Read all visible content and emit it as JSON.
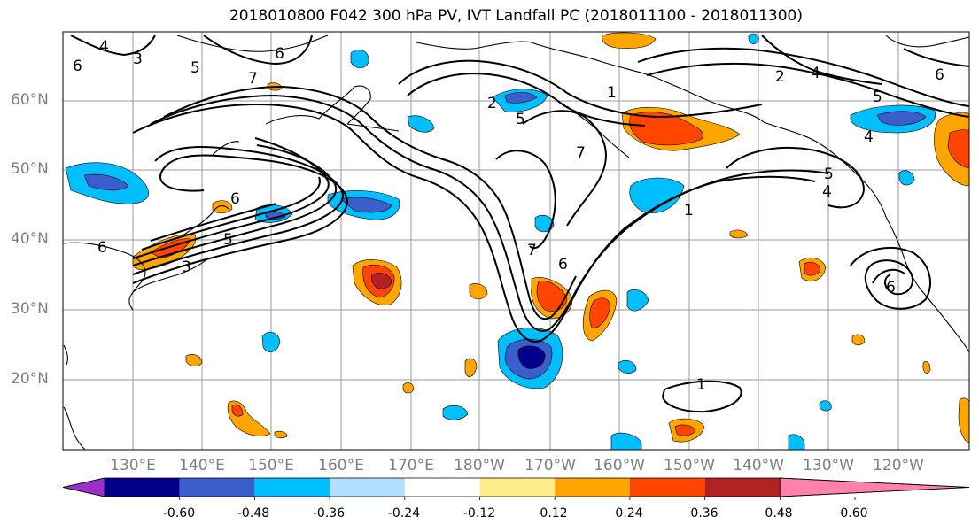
{
  "title": "2018010800 F042 300 hPa PV, IVT Landfall PC (2018011100 - 2018011300)",
  "lat_labels": [
    "60°N",
    "50°N",
    "40°N",
    "30°N",
    "20°N"
  ],
  "lon_labels": [
    "130°E",
    "140°E",
    "150°E",
    "160°E",
    "170°E",
    "180°W",
    "170°W",
    "160°W",
    "150°W",
    "140°W",
    "130°W",
    "120°W"
  ],
  "colorbar": {
    "colors": [
      "#9932cc",
      "#00008b",
      "#3a5fcd",
      "#00bfff",
      "#b0e2ff",
      "#ffffff",
      "#ffec8b",
      "#ffa500",
      "#ff4500",
      "#b22222",
      "#ff82ab"
    ],
    "tick_labels": [
      "-0.60",
      "-0.48",
      "-0.36",
      "-0.24",
      "-0.12",
      "0.12",
      "0.24",
      "0.36",
      "0.48",
      "0.60"
    ]
  },
  "contour_labels": [
    "4",
    "3",
    "5",
    "7",
    "6",
    "6",
    "2",
    "5",
    "7",
    "1",
    "2",
    "4",
    "5",
    "6",
    "1",
    "6",
    "5",
    "4",
    "6",
    "5",
    "3",
    "7",
    "6",
    "1",
    "6",
    "4"
  ]
}
